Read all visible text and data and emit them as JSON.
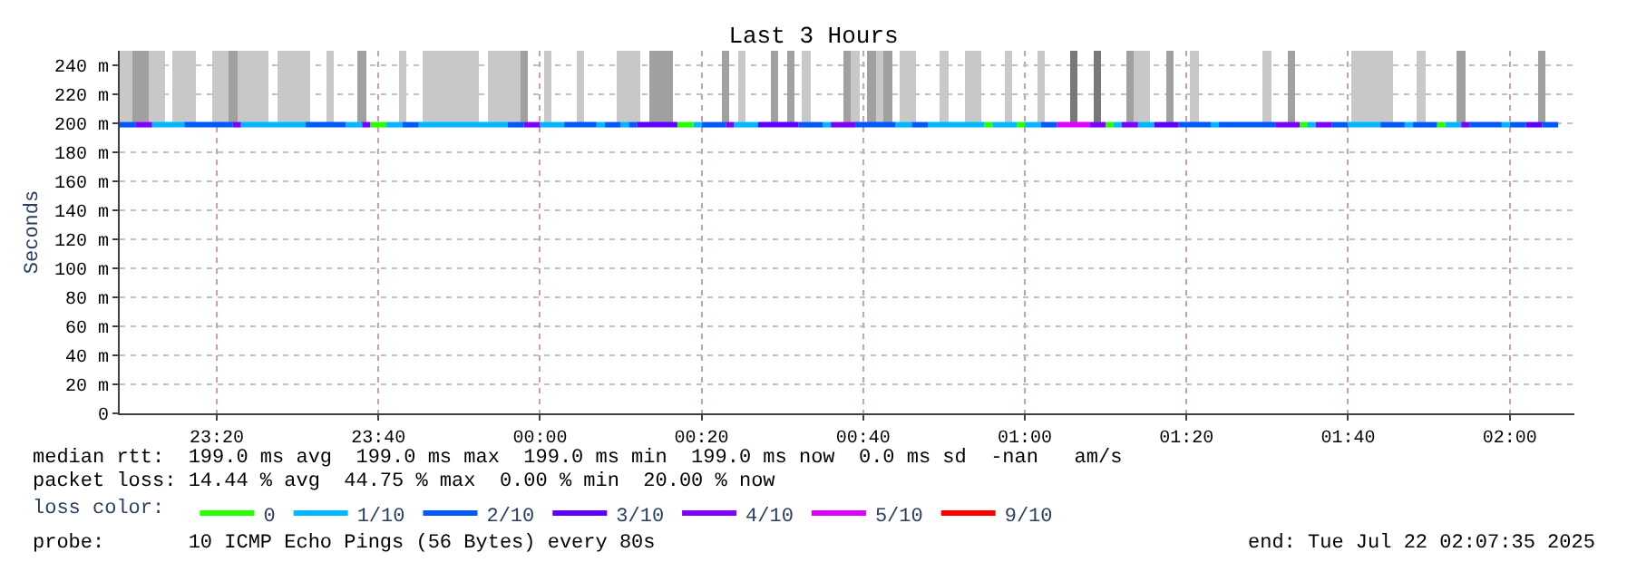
{
  "chart_data": {
    "type": "line",
    "title": "Last 3 Hours",
    "ylabel": "Seconds",
    "legend_title": "loss color:",
    "xlim": [
      "2025-07-21T23:08",
      "2025-07-22T02:08"
    ],
    "xticks": [
      {
        "value": "2025-07-21T23:20",
        "label": "23:20"
      },
      {
        "value": "2025-07-21T23:40",
        "label": "23:40"
      },
      {
        "value": "2025-07-22T00:00",
        "label": "00:00"
      },
      {
        "value": "2025-07-22T00:20",
        "label": "00:20"
      },
      {
        "value": "2025-07-22T00:40",
        "label": "00:40"
      },
      {
        "value": "2025-07-22T01:00",
        "label": "01:00"
      },
      {
        "value": "2025-07-22T01:20",
        "label": "01:20"
      },
      {
        "value": "2025-07-22T01:40",
        "label": "01:40"
      },
      {
        "value": "2025-07-22T02:00",
        "label": "02:00"
      }
    ],
    "ylim": [
      0,
      250
    ],
    "yticks": [
      0,
      {
        "value": 20,
        "label": "20 m"
      },
      {
        "value": 40,
        "label": "40 m"
      },
      {
        "value": 60,
        "label": "60 m"
      },
      {
        "value": 80,
        "label": "80 m"
      },
      {
        "value": 100,
        "label": "100 m"
      },
      {
        "value": 120,
        "label": "120 m"
      },
      {
        "value": 140,
        "label": "140 m"
      },
      {
        "value": 160,
        "label": "160 m"
      },
      {
        "value": 180,
        "label": "180 m"
      },
      {
        "value": 200,
        "label": "200 m"
      },
      {
        "value": 220,
        "label": "220 m"
      },
      {
        "value": 240,
        "label": "240 m"
      }
    ],
    "grid": true,
    "legend": "bottom",
    "series": [
      {
        "type": "bar",
        "color": "#c8c8c8",
        "x": [
          "2025-07-21T23:08",
          "2025-07-21T23:09",
          "2025-07-21T23:12",
          "2025-07-21T23:13",
          "2025-07-21T23:15",
          "2025-07-21T23:16",
          "2025-07-21T23:17",
          "2025-07-21T23:20",
          "2025-07-21T23:21",
          "2025-07-21T23:23",
          "2025-07-21T23:24",
          "2025-07-21T23:25",
          "2025-07-21T23:26",
          "2025-07-21T23:28",
          "2025-07-21T23:29",
          "2025-07-21T23:30",
          "2025-07-21T23:31",
          "2025-07-21T23:34",
          "2025-07-21T23:43",
          "2025-07-21T23:46",
          "2025-07-21T23:47",
          "2025-07-21T23:48",
          "2025-07-21T23:49",
          "2025-07-21T23:50",
          "2025-07-21T23:51",
          "2025-07-21T23:52",
          "2025-07-21T23:54",
          "2025-07-21T23:55",
          "2025-07-21T23:56",
          "2025-07-21T23:57",
          "2025-07-22T00:01",
          "2025-07-22T00:05",
          "2025-07-22T00:10",
          "2025-07-22T00:11",
          "2025-07-22T00:12",
          "2025-07-22T00:25",
          "2025-07-22T00:33",
          "2025-07-22T00:39",
          "2025-07-22T00:42",
          "2025-07-22T00:45",
          "2025-07-22T00:46",
          "2025-07-22T00:50",
          "2025-07-22T00:53",
          "2025-07-22T00:54",
          "2025-07-22T00:58",
          "2025-07-22T01:02",
          "2025-07-22T01:14",
          "2025-07-22T01:15",
          "2025-07-22T01:21",
          "2025-07-22T01:30",
          "2025-07-22T01:41",
          "2025-07-22T01:42",
          "2025-07-22T01:43",
          "2025-07-22T01:44",
          "2025-07-22T01:45",
          "2025-07-22T01:49"
        ],
        "base": [
          200,
          200,
          200,
          200,
          200,
          200,
          200,
          200,
          200,
          200,
          200,
          200,
          200,
          200,
          200,
          200,
          200,
          200,
          200,
          200,
          200,
          200,
          200,
          200,
          200,
          200,
          200,
          200,
          200,
          200,
          200,
          200,
          200,
          200,
          200,
          200,
          200,
          200,
          200,
          200,
          200,
          200,
          200,
          200,
          200,
          200,
          200,
          200,
          200,
          200,
          200,
          200,
          200,
          200,
          200,
          200
        ],
        "values": [
          50,
          50,
          50,
          50,
          50,
          50,
          50,
          50,
          50,
          50,
          50,
          50,
          50,
          50,
          50,
          50,
          50,
          50,
          50,
          50,
          50,
          50,
          50,
          50,
          50,
          50,
          50,
          50,
          50,
          50,
          50,
          50,
          50,
          50,
          50,
          50,
          50,
          50,
          50,
          50,
          50,
          50,
          50,
          50,
          50,
          50,
          50,
          50,
          50,
          50,
          50,
          50,
          50,
          50,
          50,
          50
        ]
      },
      {
        "type": "bar",
        "color": "#a0a0a0",
        "x": [
          "2025-07-21T23:10",
          "2025-07-21T23:11",
          "2025-07-21T23:22",
          "2025-07-21T23:38",
          "2025-07-21T23:58",
          "2025-07-22T00:14",
          "2025-07-22T00:15",
          "2025-07-22T00:16",
          "2025-07-22T00:23",
          "2025-07-22T00:29",
          "2025-07-22T00:31",
          "2025-07-22T00:38",
          "2025-07-22T00:41",
          "2025-07-22T00:43",
          "2025-07-22T01:13",
          "2025-07-22T01:18",
          "2025-07-22T01:33",
          "2025-07-22T01:54",
          "2025-07-22T02:04"
        ],
        "base": [
          200,
          200,
          200,
          200,
          200,
          200,
          200,
          200,
          200,
          200,
          200,
          200,
          200,
          200,
          200,
          200,
          200,
          200,
          200
        ],
        "values": [
          50,
          50,
          50,
          50,
          50,
          50,
          50,
          50,
          50,
          50,
          50,
          50,
          50,
          50,
          50,
          50,
          50,
          50,
          50
        ]
      },
      {
        "type": "bar",
        "color": "#787878",
        "x": [
          "2025-07-22T01:06",
          "2025-07-22T01:09"
        ],
        "base": [
          200,
          200
        ],
        "values": [
          50,
          50
        ]
      },
      {
        "name": "0",
        "color": "#26ff00",
        "x": [
          "2025-07-21T23:39",
          "2025-07-21T23:41"
        ],
        "values": [
          199,
          199
        ]
      },
      {
        "color": "#26ff00",
        "x": [
          "2025-07-22T00:17",
          "2025-07-22T00:19"
        ],
        "values": [
          199,
          199
        ]
      },
      {
        "color": "#26ff00",
        "x": [
          "2025-07-22T00:55",
          "2025-07-22T00:56"
        ],
        "values": [
          199,
          199
        ]
      },
      {
        "color": "#26ff00",
        "x": [
          "2025-07-22T00:59",
          "2025-07-22T01:00"
        ],
        "values": [
          199,
          199
        ]
      },
      {
        "color": "#26ff00",
        "x": [
          "2025-07-22T01:10",
          "2025-07-22T01:11"
        ],
        "values": [
          199,
          199
        ]
      },
      {
        "color": "#26ff00",
        "x": [
          "2025-07-22T01:34",
          "2025-07-22T01:35"
        ],
        "values": [
          199,
          199
        ]
      },
      {
        "color": "#26ff00",
        "x": [
          "2025-07-22T01:51",
          "2025-07-22T01:52"
        ],
        "values": [
          199,
          199
        ]
      },
      {
        "name": "1/10",
        "color": "#00b8ff",
        "x": [
          "2025-07-21T23:12",
          "2025-07-21T23:16"
        ],
        "values": [
          199,
          199
        ]
      },
      {
        "color": "#00b8ff",
        "x": [
          "2025-07-21T23:23",
          "2025-07-21T23:31"
        ],
        "values": [
          199,
          199
        ]
      },
      {
        "color": "#00b8ff",
        "x": [
          "2025-07-21T23:36",
          "2025-07-21T23:38"
        ],
        "values": [
          199,
          199
        ]
      },
      {
        "color": "#00b8ff",
        "x": [
          "2025-07-21T23:41",
          "2025-07-21T23:43"
        ],
        "values": [
          199,
          199
        ]
      },
      {
        "color": "#00b8ff",
        "x": [
          "2025-07-21T23:45",
          "2025-07-21T23:56"
        ],
        "values": [
          199,
          199
        ]
      },
      {
        "color": "#00b8ff",
        "x": [
          "2025-07-22T00:00",
          "2025-07-22T00:03"
        ],
        "values": [
          199,
          199
        ]
      },
      {
        "color": "#00b8ff",
        "x": [
          "2025-07-22T00:07",
          "2025-07-22T00:08"
        ],
        "values": [
          199,
          199
        ]
      },
      {
        "color": "#00b8ff",
        "x": [
          "2025-07-22T00:10",
          "2025-07-22T00:11"
        ],
        "values": [
          199,
          199
        ]
      },
      {
        "color": "#00b8ff",
        "x": [
          "2025-07-22T00:19",
          "2025-07-22T00:20"
        ],
        "values": [
          199,
          199
        ]
      },
      {
        "color": "#00b8ff",
        "x": [
          "2025-07-22T00:24",
          "2025-07-22T00:27"
        ],
        "values": [
          199,
          199
        ]
      },
      {
        "color": "#00b8ff",
        "x": [
          "2025-07-22T00:35",
          "2025-07-22T00:36"
        ],
        "values": [
          199,
          199
        ]
      },
      {
        "color": "#00b8ff",
        "x": [
          "2025-07-22T00:44",
          "2025-07-22T00:46"
        ],
        "values": [
          199,
          199
        ]
      },
      {
        "color": "#00b8ff",
        "x": [
          "2025-07-22T00:48",
          "2025-07-22T00:55"
        ],
        "values": [
          199,
          199
        ]
      },
      {
        "color": "#00b8ff",
        "x": [
          "2025-07-22T00:56",
          "2025-07-22T00:59"
        ],
        "values": [
          199,
          199
        ]
      },
      {
        "color": "#00b8ff",
        "x": [
          "2025-07-22T01:00",
          "2025-07-22T01:02"
        ],
        "values": [
          199,
          199
        ]
      },
      {
        "color": "#00b8ff",
        "x": [
          "2025-07-22T01:11",
          "2025-07-22T01:12"
        ],
        "values": [
          199,
          199
        ]
      },
      {
        "color": "#00b8ff",
        "x": [
          "2025-07-22T01:14",
          "2025-07-22T01:16"
        ],
        "values": [
          199,
          199
        ]
      },
      {
        "color": "#00b8ff",
        "x": [
          "2025-07-22T01:23",
          "2025-07-22T01:24"
        ],
        "values": [
          199,
          199
        ]
      },
      {
        "color": "#00b8ff",
        "x": [
          "2025-07-22T01:35",
          "2025-07-22T01:36"
        ],
        "values": [
          199,
          199
        ]
      },
      {
        "color": "#00b8ff",
        "x": [
          "2025-07-22T01:40",
          "2025-07-22T01:44"
        ],
        "values": [
          199,
          199
        ]
      },
      {
        "color": "#00b8ff",
        "x": [
          "2025-07-22T01:47",
          "2025-07-22T01:48"
        ],
        "values": [
          199,
          199
        ]
      },
      {
        "color": "#00b8ff",
        "x": [
          "2025-07-22T01:52",
          "2025-07-22T01:54"
        ],
        "values": [
          199,
          199
        ]
      },
      {
        "color": "#00b8ff",
        "x": [
          "2025-07-22T01:59",
          "2025-07-22T02:00"
        ],
        "values": [
          199,
          199
        ]
      },
      {
        "name": "2/10",
        "color": "#0059ff",
        "x": [
          "2025-07-21T23:08",
          "2025-07-21T23:10"
        ],
        "values": [
          199,
          199
        ]
      },
      {
        "color": "#0059ff",
        "x": [
          "2025-07-21T23:16",
          "2025-07-21T23:22"
        ],
        "values": [
          199,
          199
        ]
      },
      {
        "color": "#0059ff",
        "x": [
          "2025-07-21T23:31",
          "2025-07-21T23:36"
        ],
        "values": [
          199,
          199
        ]
      },
      {
        "color": "#0059ff",
        "x": [
          "2025-07-21T23:43",
          "2025-07-21T23:45"
        ],
        "values": [
          199,
          199
        ]
      },
      {
        "color": "#0059ff",
        "x": [
          "2025-07-21T23:56",
          "2025-07-21T23:58"
        ],
        "values": [
          199,
          199
        ]
      },
      {
        "color": "#0059ff",
        "x": [
          "2025-07-22T00:03",
          "2025-07-22T00:07"
        ],
        "values": [
          199,
          199
        ]
      },
      {
        "color": "#0059ff",
        "x": [
          "2025-07-22T00:08",
          "2025-07-22T00:10"
        ],
        "values": [
          199,
          199
        ]
      },
      {
        "color": "#0059ff",
        "x": [
          "2025-07-22T00:11",
          "2025-07-22T00:12"
        ],
        "values": [
          199,
          199
        ]
      },
      {
        "color": "#0059ff",
        "x": [
          "2025-07-22T00:20",
          "2025-07-22T00:23"
        ],
        "values": [
          199,
          199
        ]
      },
      {
        "color": "#0059ff",
        "x": [
          "2025-07-22T00:32",
          "2025-07-22T00:35"
        ],
        "values": [
          199,
          199
        ]
      },
      {
        "color": "#0059ff",
        "x": [
          "2025-07-22T00:39",
          "2025-07-22T00:44"
        ],
        "values": [
          199,
          199
        ]
      },
      {
        "color": "#0059ff",
        "x": [
          "2025-07-22T00:46",
          "2025-07-22T00:48"
        ],
        "values": [
          199,
          199
        ]
      },
      {
        "color": "#0059ff",
        "x": [
          "2025-07-22T01:02",
          "2025-07-22T01:04"
        ],
        "values": [
          199,
          199
        ]
      },
      {
        "color": "#0059ff",
        "x": [
          "2025-07-22T01:19",
          "2025-07-22T01:23"
        ],
        "values": [
          199,
          199
        ]
      },
      {
        "color": "#0059ff",
        "x": [
          "2025-07-22T01:24",
          "2025-07-22T01:31"
        ],
        "values": [
          199,
          199
        ]
      },
      {
        "color": "#0059ff",
        "x": [
          "2025-07-22T01:38",
          "2025-07-22T01:40"
        ],
        "values": [
          199,
          199
        ]
      },
      {
        "color": "#0059ff",
        "x": [
          "2025-07-22T01:44",
          "2025-07-22T01:47"
        ],
        "values": [
          199,
          199
        ]
      },
      {
        "color": "#0059ff",
        "x": [
          "2025-07-22T01:48",
          "2025-07-22T01:51"
        ],
        "values": [
          199,
          199
        ]
      },
      {
        "color": "#0059ff",
        "x": [
          "2025-07-22T01:55",
          "2025-07-22T01:59"
        ],
        "values": [
          199,
          199
        ]
      },
      {
        "color": "#0059ff",
        "x": [
          "2025-07-22T02:00",
          "2025-07-22T02:02"
        ],
        "values": [
          199,
          199
        ]
      },
      {
        "color": "#0059ff",
        "x": [
          "2025-07-22T02:04",
          "2025-07-22T02:06"
        ],
        "values": [
          199,
          199
        ]
      },
      {
        "name": "3/10",
        "color": "#5e00ff",
        "x": [
          "2025-07-22T00:12",
          "2025-07-22T00:17"
        ],
        "values": [
          199,
          199
        ]
      },
      {
        "color": "#5e00ff",
        "x": [
          "2025-07-22T00:27",
          "2025-07-22T00:32"
        ],
        "values": [
          199,
          199
        ]
      },
      {
        "color": "#5e00ff",
        "x": [
          "2025-07-22T01:16",
          "2025-07-22T01:19"
        ],
        "values": [
          199,
          199
        ]
      },
      {
        "color": "#5e00ff",
        "x": [
          "2025-07-22T02:02",
          "2025-07-22T02:04"
        ],
        "values": [
          199,
          199
        ]
      },
      {
        "name": "4/10",
        "color": "#7e00ff",
        "x": [
          "2025-07-21T23:10",
          "2025-07-21T23:12"
        ],
        "values": [
          199,
          199
        ]
      },
      {
        "color": "#7e00ff",
        "x": [
          "2025-07-21T23:22",
          "2025-07-21T23:23"
        ],
        "values": [
          199,
          199
        ]
      },
      {
        "color": "#7e00ff",
        "x": [
          "2025-07-21T23:38",
          "2025-07-21T23:39"
        ],
        "values": [
          199,
          199
        ]
      },
      {
        "color": "#7e00ff",
        "x": [
          "2025-07-21T23:58",
          "2025-07-22T00:00"
        ],
        "values": [
          199,
          199
        ]
      },
      {
        "color": "#7e00ff",
        "x": [
          "2025-07-22T00:23",
          "2025-07-22T00:24"
        ],
        "values": [
          199,
          199
        ]
      },
      {
        "color": "#7e00ff",
        "x": [
          "2025-07-22T00:36",
          "2025-07-22T00:39"
        ],
        "values": [
          199,
          199
        ]
      },
      {
        "color": "#7e00ff",
        "x": [
          "2025-07-22T01:08",
          "2025-07-22T01:10"
        ],
        "values": [
          199,
          199
        ]
      },
      {
        "color": "#7e00ff",
        "x": [
          "2025-07-22T01:12",
          "2025-07-22T01:14"
        ],
        "values": [
          199,
          199
        ]
      },
      {
        "color": "#7e00ff",
        "x": [
          "2025-07-22T01:31",
          "2025-07-22T01:34"
        ],
        "values": [
          199,
          199
        ]
      },
      {
        "color": "#7e00ff",
        "x": [
          "2025-07-22T01:36",
          "2025-07-22T01:38"
        ],
        "values": [
          199,
          199
        ]
      },
      {
        "color": "#7e00ff",
        "x": [
          "2025-07-22T01:54",
          "2025-07-22T01:55"
        ],
        "values": [
          199,
          199
        ]
      },
      {
        "name": "5/10",
        "color": "#dd00ff",
        "x": [
          "2025-07-22T01:04",
          "2025-07-22T01:08"
        ],
        "values": [
          199,
          199
        ]
      },
      {
        "name": "9/10",
        "color": "#ff0000"
      }
    ],
    "annotations": [
      "median rtt:  199.0 ms avg  199.0 ms max  199.0 ms min  199.0 ms now  0.0 ms sd  -nan   am/s",
      "packet loss: 14.44 % avg  44.75 % max  0.00 % min  20.00 % now",
      "probe:       10 ICMP Echo Pings (56 Bytes) every 80s",
      "end: Tue Jul 22 02:07:35 2025"
    ]
  }
}
